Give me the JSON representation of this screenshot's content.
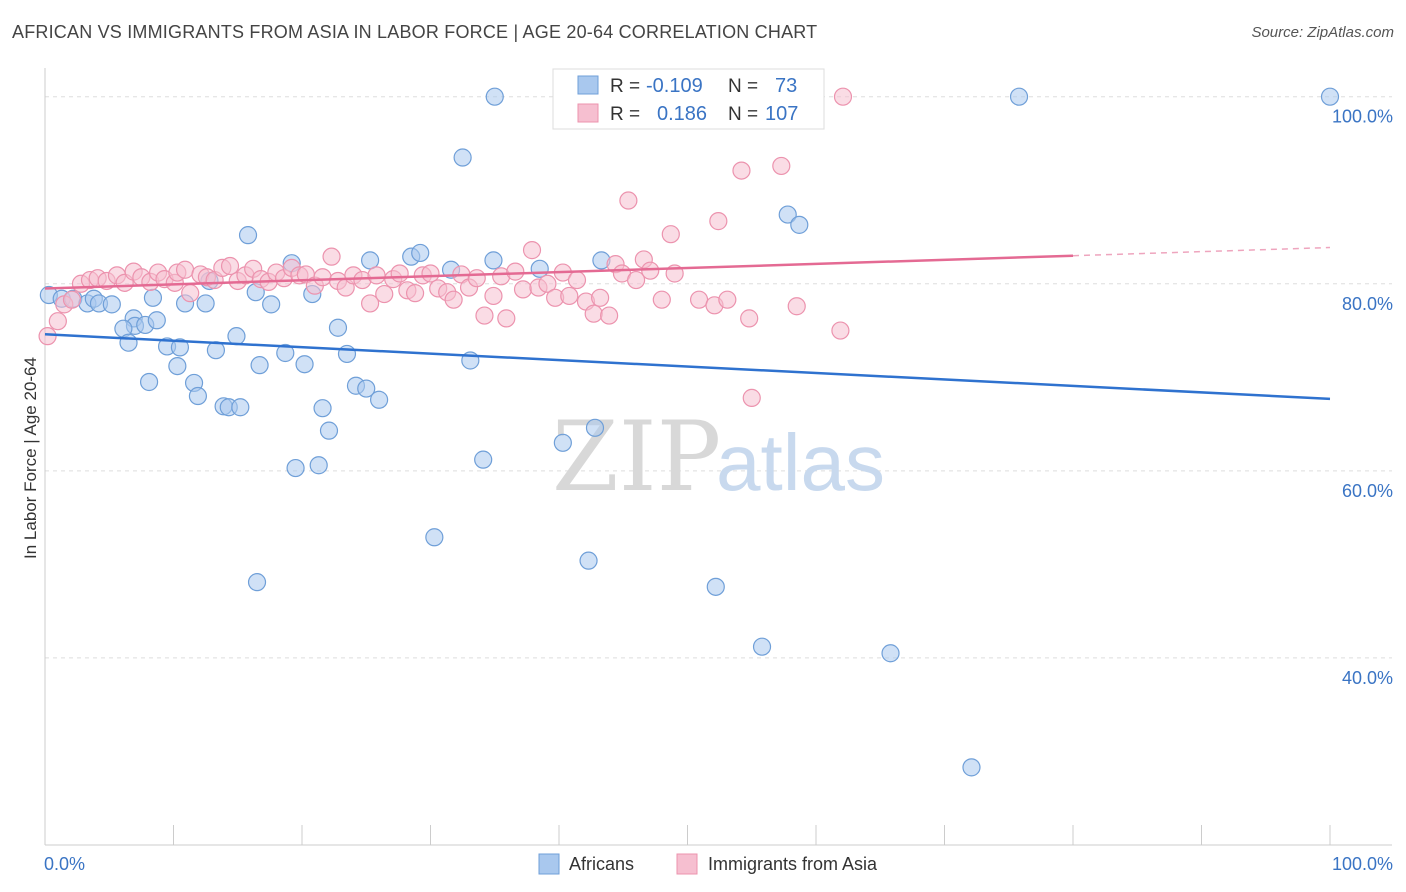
{
  "header": {
    "title": "AFRICAN VS IMMIGRANTS FROM ASIA IN LABOR FORCE | AGE 20-64 CORRELATION CHART",
    "source": "Source: ZipAtlas.com"
  },
  "watermark": {
    "zip": "ZIP",
    "atlas": "atlas"
  },
  "legend": {
    "r_label": "R =",
    "n_label": "N =",
    "series": [
      {
        "r": "-0.109",
        "n": "73"
      },
      {
        "r": "0.186",
        "n": "107"
      }
    ]
  },
  "bottom_legend": [
    "Africans",
    "Immigrants from Asia"
  ],
  "colors": {
    "africans_fill": "#a9c8ee",
    "africans_stroke": "#6f9fd8",
    "africans_line": "#2f72cf",
    "asia_fill": "#f6bfd0",
    "asia_stroke": "#ec93ae",
    "asia_line": "#e46a93",
    "axis_text": "#3a74c4"
  },
  "chart_data": {
    "type": "scatter",
    "ylabel": "In Labor Force | Age 20-64",
    "x_ticks": [
      "0.0%",
      "100.0%"
    ],
    "y_ticks": [
      "100.0%",
      "80.0%",
      "60.0%",
      "40.0%"
    ],
    "xlim": [
      0,
      100
    ],
    "ylim": [
      20,
      102
    ],
    "series": [
      {
        "name": "Africans",
        "trend": {
          "x": [
            0,
            100
          ],
          "y": [
            74.6,
            67.7
          ]
        },
        "points": [
          [
            0.3,
            78.8
          ],
          [
            1.3,
            78.4
          ],
          [
            2.2,
            78.4
          ],
          [
            3.3,
            77.9
          ],
          [
            3.8,
            78.4
          ],
          [
            4.2,
            77.9
          ],
          [
            5.2,
            77.8
          ],
          [
            6.9,
            76.3
          ],
          [
            7,
            75.5
          ],
          [
            6.1,
            75.2
          ],
          [
            6.5,
            73.7
          ],
          [
            7.8,
            75.6
          ],
          [
            8.4,
            78.5
          ],
          [
            8.7,
            76.1
          ],
          [
            8.1,
            69.5
          ],
          [
            9.5,
            73.3
          ],
          [
            10.3,
            71.2
          ],
          [
            10.5,
            73.2
          ],
          [
            10.9,
            77.9
          ],
          [
            11.6,
            69.4
          ],
          [
            11.9,
            68.0
          ],
          [
            12.5,
            77.9
          ],
          [
            12.8,
            80.3
          ],
          [
            13.3,
            72.9
          ],
          [
            13.9,
            66.9
          ],
          [
            14.3,
            66.8
          ],
          [
            14.9,
            74.4
          ],
          [
            15.2,
            66.8
          ],
          [
            15.8,
            85.2
          ],
          [
            16.4,
            79.1
          ],
          [
            16.7,
            71.3
          ],
          [
            17.6,
            77.8
          ],
          [
            16.5,
            48.1
          ],
          [
            18.7,
            72.6
          ],
          [
            19.2,
            82.2
          ],
          [
            19.5,
            60.3
          ],
          [
            20.2,
            71.4
          ],
          [
            20.8,
            78.9
          ],
          [
            21.3,
            60.6
          ],
          [
            21.6,
            66.7
          ],
          [
            22.1,
            64.3
          ],
          [
            22.8,
            75.3
          ],
          [
            23.5,
            72.5
          ],
          [
            24.2,
            69.1
          ],
          [
            25,
            68.8
          ],
          [
            25.3,
            82.5
          ],
          [
            26,
            67.6
          ],
          [
            28.5,
            82.9
          ],
          [
            29.2,
            83.3
          ],
          [
            30.3,
            52.9
          ],
          [
            31.6,
            81.5
          ],
          [
            32.5,
            93.5
          ],
          [
            33.1,
            71.8
          ],
          [
            34.1,
            61.2
          ],
          [
            34.9,
            82.5
          ],
          [
            35,
            100
          ],
          [
            38.5,
            81.6
          ],
          [
            40.3,
            63.0
          ],
          [
            42.3,
            50.4
          ],
          [
            42.8,
            64.6
          ],
          [
            43.3,
            82.5
          ],
          [
            52.2,
            47.6
          ],
          [
            55.8,
            41.2
          ],
          [
            57.8,
            87.4
          ],
          [
            58.7,
            86.3
          ],
          [
            65.8,
            40.5
          ],
          [
            72.1,
            28.3
          ],
          [
            75.8,
            100
          ],
          [
            100,
            100
          ]
        ]
      },
      {
        "name": "Immigrants from Asia",
        "trend": {
          "x": [
            0,
            80
          ],
          "y": [
            79.5,
            83.0
          ]
        },
        "points": [
          [
            0.2,
            74.4
          ],
          [
            1,
            76.0
          ],
          [
            1.5,
            77.8
          ],
          [
            2.1,
            78.3
          ],
          [
            2.8,
            80.0
          ],
          [
            3.5,
            80.4
          ],
          [
            4.1,
            80.6
          ],
          [
            4.8,
            80.3
          ],
          [
            5.6,
            80.9
          ],
          [
            6.2,
            80.1
          ],
          [
            6.9,
            81.3
          ],
          [
            7.5,
            80.7
          ],
          [
            8.2,
            80.2
          ],
          [
            8.8,
            81.2
          ],
          [
            9.3,
            80.5
          ],
          [
            10.1,
            80.1
          ],
          [
            10.3,
            81.2
          ],
          [
            10.9,
            81.5
          ],
          [
            11.3,
            79.0
          ],
          [
            12.1,
            81.0
          ],
          [
            12.6,
            80.7
          ],
          [
            13.2,
            80.4
          ],
          [
            13.8,
            81.7
          ],
          [
            14.4,
            81.9
          ],
          [
            15,
            80.3
          ],
          [
            15.6,
            80.9
          ],
          [
            16.2,
            81.6
          ],
          [
            16.8,
            80.5
          ],
          [
            17.4,
            80.2
          ],
          [
            18,
            81.2
          ],
          [
            18.6,
            80.6
          ],
          [
            19.2,
            81.7
          ],
          [
            19.8,
            80.9
          ],
          [
            20.3,
            81.0
          ],
          [
            21,
            79.8
          ],
          [
            21.6,
            80.7
          ],
          [
            22.3,
            82.9
          ],
          [
            22.8,
            80.3
          ],
          [
            23.4,
            79.6
          ],
          [
            24,
            80.9
          ],
          [
            24.7,
            80.4
          ],
          [
            25.3,
            77.9
          ],
          [
            25.8,
            80.9
          ],
          [
            26.4,
            78.9
          ],
          [
            27.1,
            80.5
          ],
          [
            27.6,
            81.1
          ],
          [
            28.2,
            79.3
          ],
          [
            28.8,
            79.0
          ],
          [
            29.4,
            80.9
          ],
          [
            30,
            81.1
          ],
          [
            30.6,
            79.5
          ],
          [
            31.3,
            79.1
          ],
          [
            31.8,
            78.3
          ],
          [
            32.4,
            81.0
          ],
          [
            33,
            79.6
          ],
          [
            33.6,
            80.6
          ],
          [
            34.2,
            76.6
          ],
          [
            34.9,
            78.7
          ],
          [
            35.5,
            80.8
          ],
          [
            35.9,
            76.3
          ],
          [
            36.6,
            81.3
          ],
          [
            37.2,
            79.4
          ],
          [
            37.9,
            83.6
          ],
          [
            38.4,
            79.6
          ],
          [
            39.1,
            80.0
          ],
          [
            39.7,
            78.5
          ],
          [
            40.3,
            81.2
          ],
          [
            40.8,
            78.7
          ],
          [
            41.4,
            80.4
          ],
          [
            42.1,
            78.1
          ],
          [
            42.7,
            76.8
          ],
          [
            43.2,
            78.5
          ],
          [
            43.9,
            76.6
          ],
          [
            44.4,
            82.1
          ],
          [
            44.9,
            81.1
          ],
          [
            45.4,
            88.9
          ],
          [
            46,
            80.4
          ],
          [
            46.6,
            82.6
          ],
          [
            47.1,
            81.4
          ],
          [
            48,
            78.3
          ],
          [
            48.7,
            85.3
          ],
          [
            49,
            81.1
          ],
          [
            50.9,
            78.3
          ],
          [
            52.1,
            77.7
          ],
          [
            52.4,
            86.7
          ],
          [
            53.1,
            78.3
          ],
          [
            54.2,
            92.1
          ],
          [
            54.8,
            76.3
          ],
          [
            55,
            67.8
          ],
          [
            57.3,
            92.6
          ],
          [
            58.5,
            77.6
          ],
          [
            61.9,
            75.0
          ],
          [
            62.1,
            100
          ]
        ]
      }
    ]
  }
}
